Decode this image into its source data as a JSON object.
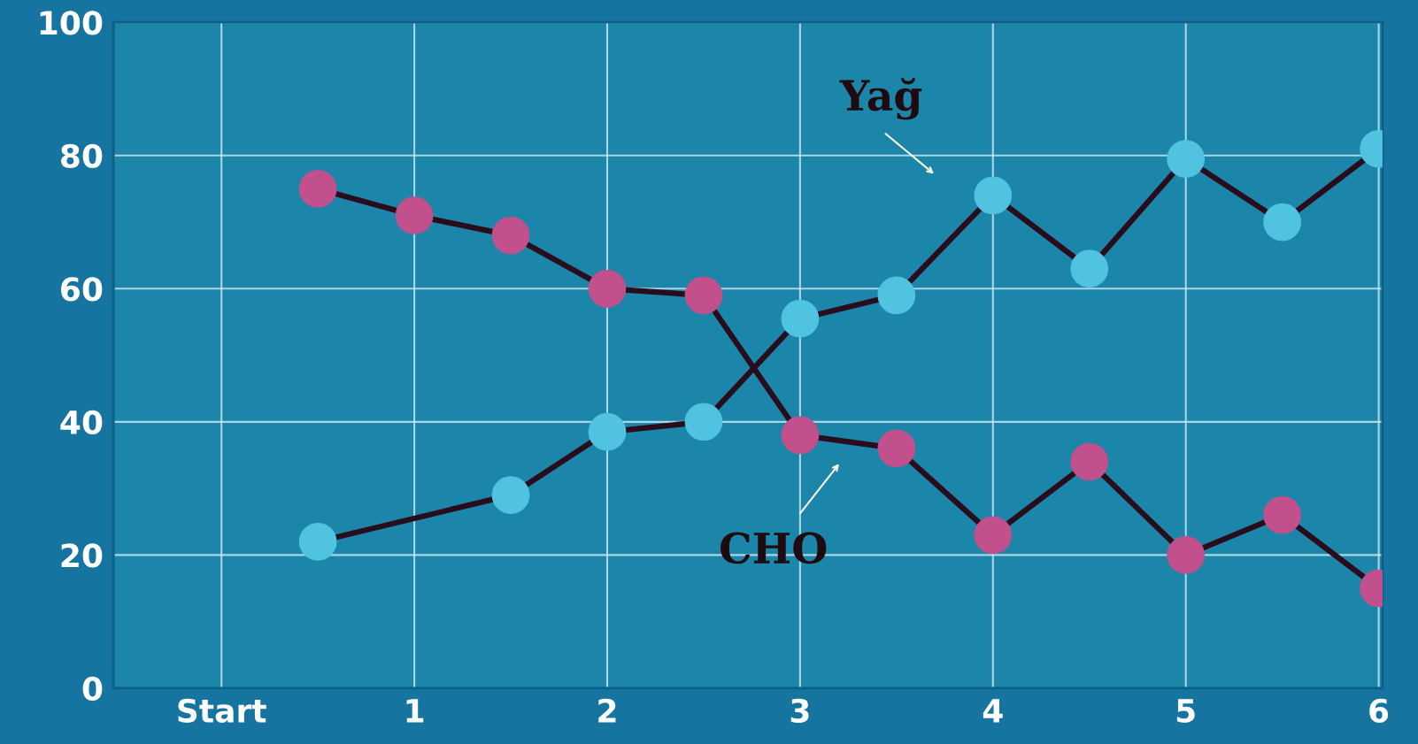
{
  "chart_data": {
    "type": "line",
    "xlim": [
      -0.56,
      6.02
    ],
    "xticks": [
      {
        "value": 0,
        "label": "Start"
      },
      1,
      2,
      3,
      4,
      5,
      6
    ],
    "ylim": [
      0,
      100
    ],
    "yticks": [
      0,
      20,
      40,
      60,
      80,
      100
    ],
    "grid": true,
    "marker": "circle",
    "line_style": "solid",
    "series": [
      {
        "color": "#c2508c",
        "x": [
          0.5,
          1,
          1.5,
          2,
          2.5,
          3,
          3.5,
          4,
          4.5,
          5,
          5.5,
          6
        ],
        "values": [
          75,
          71,
          68,
          60,
          59,
          38,
          36,
          23,
          34,
          20,
          26,
          15
        ]
      },
      {
        "color": "#4fc3df",
        "x": [
          0.5,
          1.5,
          2,
          2.5,
          3,
          3.5,
          4,
          4.5,
          5,
          5.5,
          6
        ],
        "values": [
          22,
          29,
          38.5,
          40,
          55.5,
          59,
          74,
          63,
          79.5,
          70,
          81
        ]
      }
    ],
    "annotations": [
      "Yağ",
      "CHO"
    ]
  }
}
